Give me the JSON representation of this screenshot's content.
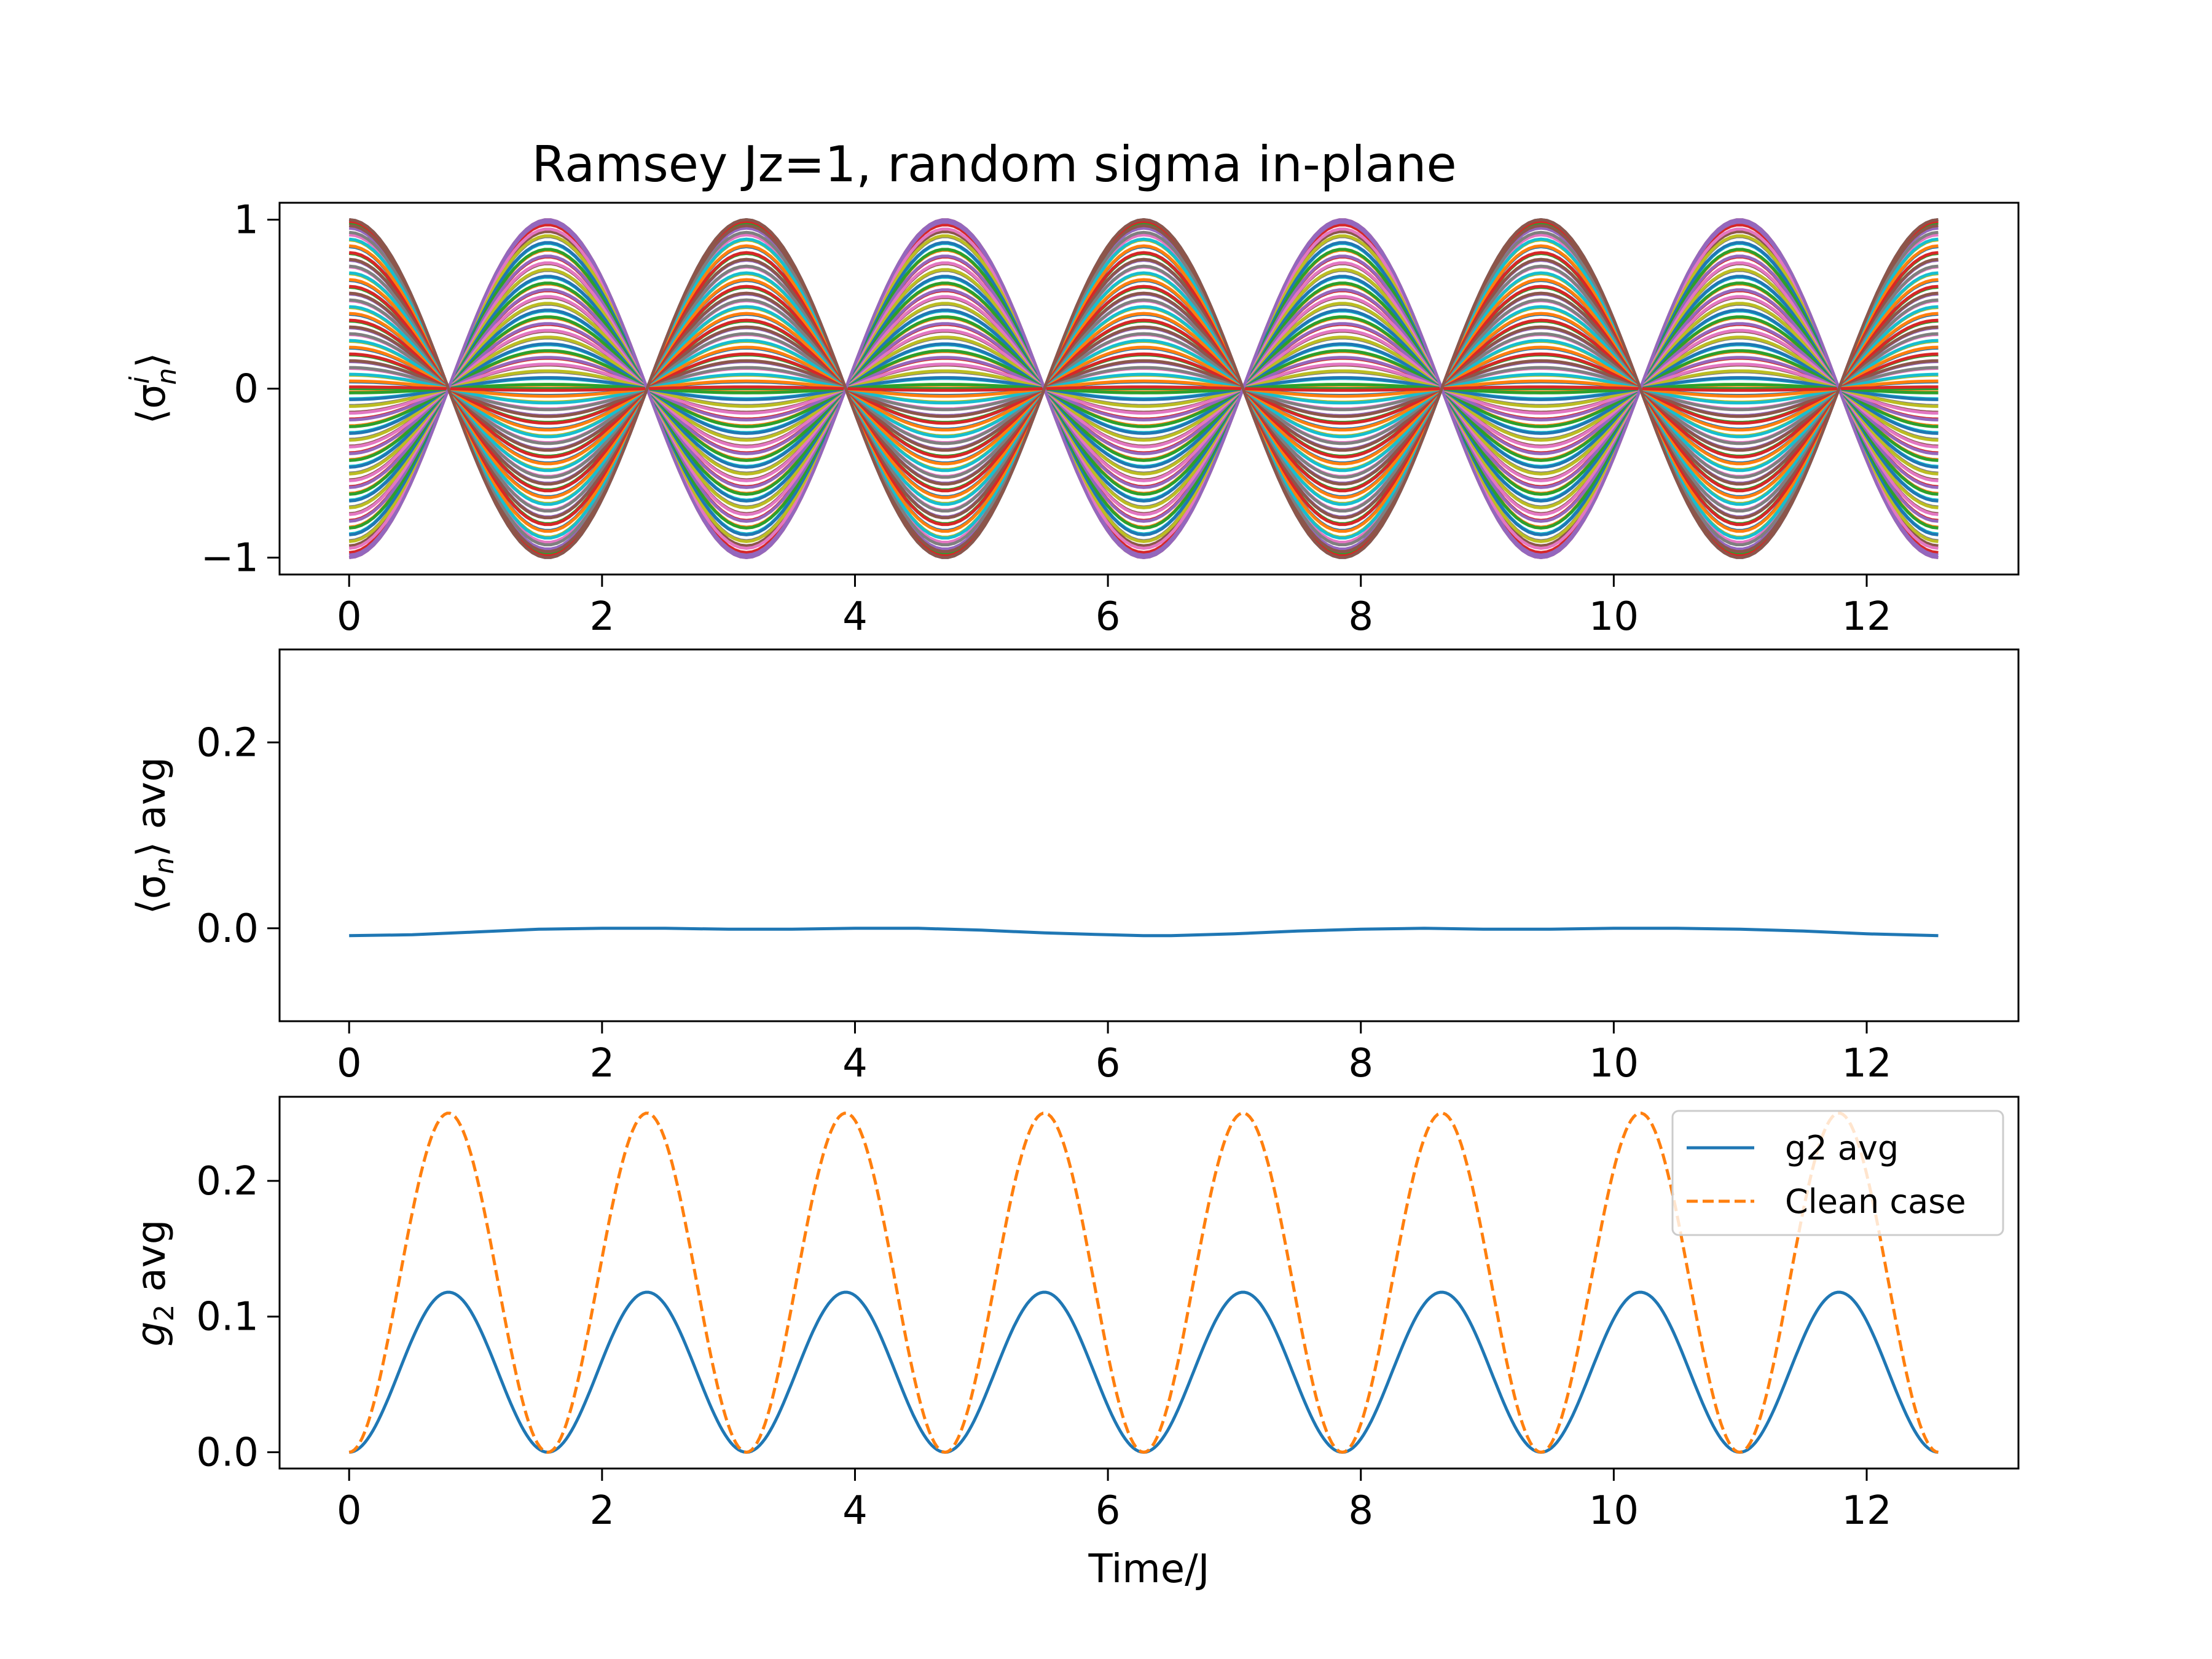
{
  "title": "Ramsey Jz=1, random sigma in-plane",
  "colors": {
    "cycle": [
      "#1f77b4",
      "#ff7f0e",
      "#2ca02c",
      "#d62728",
      "#9467bd",
      "#8c564b",
      "#e377c2",
      "#7f7f7f",
      "#bcbd22",
      "#17becf"
    ],
    "avg_line": "#1f77b4",
    "clean_line": "#ff7f0e"
  },
  "chart_data": [
    {
      "type": "line",
      "panel": "top",
      "ylabel": "⟨σnⁱ⟩",
      "ylabel_main": "⟨σ",
      "ylabel_sub": "n",
      "ylabel_sup": "i",
      "ylabel_close": "⟩",
      "xlim": [
        -0.55,
        13.2
      ],
      "ylim": [
        -1.1,
        1.1
      ],
      "xticks": [
        0,
        2,
        4,
        6,
        8,
        10,
        12
      ],
      "yticks": [
        -1,
        0,
        1
      ],
      "ytick_labels": [
        "−1",
        "0",
        "1"
      ],
      "series_model": "cos(2t)·a_i for many random amplitudes a_i ∈ [−1, 1]",
      "x_range": [
        0,
        12.566
      ],
      "amplitudes": [
        1.0,
        -1.0,
        0.98,
        -0.97,
        0.95,
        -0.93,
        0.91,
        -0.9,
        0.88,
        -0.86,
        0.84,
        -0.82,
        0.8,
        -0.78,
        0.76,
        -0.74,
        0.72,
        -0.7,
        0.68,
        -0.66,
        0.64,
        -0.62,
        0.6,
        -0.58,
        0.56,
        -0.54,
        0.52,
        -0.5,
        0.48,
        -0.46,
        0.44,
        -0.42,
        0.4,
        -0.38,
        0.36,
        -0.34,
        0.32,
        -0.3,
        0.28,
        -0.26,
        0.24,
        -0.22,
        0.2,
        -0.18,
        0.16,
        -0.14,
        0.12,
        -0.1,
        0.08,
        -0.06,
        0.04,
        -0.02,
        0.0,
        0.99,
        -0.985,
        0.965,
        -0.945,
        0.925,
        -0.905,
        0.885,
        -0.865,
        0.845,
        -0.825,
        0.805,
        -0.785,
        0.765,
        -0.745,
        0.725,
        -0.705,
        0.685,
        -0.665,
        0.645,
        -0.625,
        0.605,
        -0.585,
        0.565,
        -0.545,
        0.525,
        -0.505,
        0.485,
        -0.465,
        0.445,
        -0.425,
        0.405,
        -0.385,
        0.365,
        -0.345,
        0.325,
        -0.305,
        0.285,
        -0.265,
        0.245,
        -0.225,
        0.205,
        -0.185,
        0.165,
        -0.145,
        0.125,
        -0.105,
        0.085,
        -0.065,
        0.045,
        -0.025,
        0.01,
        -1.0,
        1.0
      ]
    },
    {
      "type": "line",
      "panel": "middle",
      "ylabel_main": "⟨σ",
      "ylabel_sub": "n",
      "ylabel_close": "⟩ avg",
      "xlim": [
        -0.55,
        13.2
      ],
      "ylim": [
        -0.1,
        0.3
      ],
      "xticks": [
        0,
        2,
        4,
        6,
        8,
        10,
        12
      ],
      "yticks": [
        0.0,
        0.2
      ],
      "ytick_labels": [
        "0.0",
        "0.2"
      ],
      "series": [
        {
          "x": [
            0,
            0.5,
            1.0,
            1.5,
            2.0,
            2.5,
            3.0,
            3.5,
            4.0,
            4.5,
            5.0,
            5.5,
            6.0,
            6.28,
            6.5,
            7.0,
            7.5,
            8.0,
            8.5,
            9.0,
            9.5,
            10.0,
            10.5,
            11.0,
            11.5,
            12.0,
            12.566
          ],
          "values": [
            -0.008,
            -0.007,
            -0.004,
            -0.001,
            0.0,
            0.0,
            -0.001,
            -0.001,
            0.0,
            0.0,
            -0.002,
            -0.005,
            -0.007,
            -0.008,
            -0.008,
            -0.006,
            -0.003,
            -0.001,
            0.0,
            -0.001,
            -0.001,
            0.0,
            0.0,
            -0.001,
            -0.003,
            -0.006,
            -0.008
          ]
        }
      ]
    },
    {
      "type": "line",
      "panel": "bottom",
      "ylabel_main": "g",
      "ylabel_sub": "2",
      "ylabel_close": " avg",
      "xlabel": "Time/J",
      "xlim": [
        -0.55,
        13.2
      ],
      "ylim": [
        -0.012,
        0.262
      ],
      "xticks": [
        0,
        2,
        4,
        6,
        8,
        10,
        12
      ],
      "yticks": [
        0.0,
        0.1,
        0.2
      ],
      "ytick_labels": [
        "0.0",
        "0.1",
        "0.2"
      ],
      "legend": {
        "placement": "top-right",
        "entries": [
          "g2 avg",
          "Clean case"
        ]
      },
      "series": [
        {
          "name": "g2 avg",
          "style": "solid",
          "model": "0.118·sin²(2t)",
          "peak": 0.118,
          "x_range": [
            0,
            12.566
          ]
        },
        {
          "name": "Clean case",
          "style": "dashed",
          "model": "0.25·sin²(2t)",
          "peak": 0.25,
          "x_range": [
            0,
            12.566
          ]
        }
      ]
    }
  ]
}
